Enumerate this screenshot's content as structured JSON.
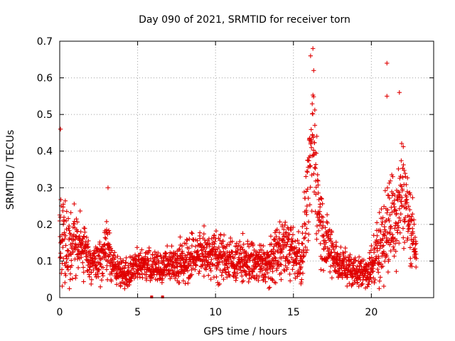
{
  "chart_data": {
    "type": "scatter",
    "title": "Day 090 of 2021, SRMTID for receiver torn",
    "xlabel": "GPS time / hours",
    "ylabel": "SRMTID / TECUs",
    "xlim": [
      0,
      24
    ],
    "ylim": [
      0,
      0.7
    ],
    "xticks": [
      0,
      5,
      10,
      15,
      20
    ],
    "xtick_labels": [
      "0",
      "5",
      "10",
      "15",
      "20"
    ],
    "yticks": [
      0,
      0.1,
      0.2,
      0.3,
      0.4,
      0.5,
      0.6,
      0.7
    ],
    "ytick_labels": [
      "0",
      "0.1",
      "0.2",
      "0.3",
      "0.4",
      "0.5",
      "0.6",
      "0.7"
    ],
    "grid": true,
    "marker": "+",
    "color": "#e00000",
    "x_range_of_points": [
      0,
      22.9
    ],
    "envelope": {
      "description": "approximate local level of SRMTID vs hour (median and spread)",
      "hours": [
        0.0,
        0.5,
        1.0,
        1.5,
        2.0,
        2.5,
        3.0,
        3.5,
        4.0,
        4.5,
        5.0,
        5.5,
        6.0,
        7.0,
        8.0,
        9.0,
        10.0,
        11.0,
        12.0,
        13.0,
        13.5,
        14.0,
        14.5,
        15.0,
        15.5,
        16.0,
        16.3,
        16.6,
        17.0,
        17.5,
        18.0,
        18.5,
        19.0,
        19.5,
        20.0,
        20.5,
        21.0,
        21.5,
        22.0,
        22.5,
        22.9
      ],
      "median": [
        0.18,
        0.14,
        0.15,
        0.14,
        0.1,
        0.09,
        0.14,
        0.08,
        0.06,
        0.07,
        0.09,
        0.09,
        0.08,
        0.09,
        0.1,
        0.12,
        0.12,
        0.1,
        0.1,
        0.09,
        0.09,
        0.14,
        0.14,
        0.12,
        0.1,
        0.32,
        0.42,
        0.25,
        0.15,
        0.12,
        0.09,
        0.08,
        0.07,
        0.07,
        0.08,
        0.14,
        0.2,
        0.22,
        0.3,
        0.2,
        0.14
      ],
      "spread": [
        0.1,
        0.07,
        0.06,
        0.05,
        0.04,
        0.04,
        0.05,
        0.03,
        0.03,
        0.03,
        0.03,
        0.03,
        0.03,
        0.03,
        0.04,
        0.04,
        0.05,
        0.04,
        0.04,
        0.04,
        0.04,
        0.06,
        0.05,
        0.05,
        0.05,
        0.1,
        0.12,
        0.09,
        0.06,
        0.05,
        0.03,
        0.03,
        0.03,
        0.03,
        0.04,
        0.07,
        0.1,
        0.1,
        0.1,
        0.07,
        0.04
      ]
    },
    "peaks": [
      {
        "x": 0.05,
        "y": 0.46
      },
      {
        "x": 3.1,
        "y": 0.3
      },
      {
        "x": 16.1,
        "y": 0.66
      },
      {
        "x": 16.25,
        "y": 0.68
      },
      {
        "x": 16.3,
        "y": 0.62
      },
      {
        "x": 21.0,
        "y": 0.64
      },
      {
        "x": 21.8,
        "y": 0.56
      },
      {
        "x": 21.0,
        "y": 0.55
      }
    ],
    "outage_markers": [
      {
        "x": 5.9,
        "y": 0.0
      },
      {
        "x": 6.6,
        "y": 0.0
      }
    ]
  }
}
